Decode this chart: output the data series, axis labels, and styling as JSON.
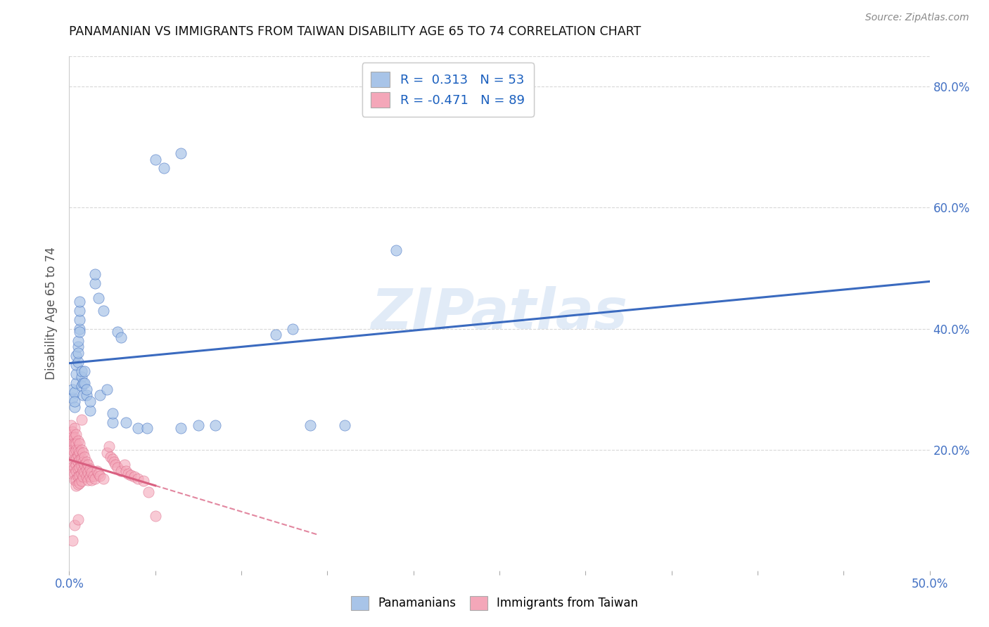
{
  "title": "PANAMANIAN VS IMMIGRANTS FROM TAIWAN DISABILITY AGE 65 TO 74 CORRELATION CHART",
  "source": "Source: ZipAtlas.com",
  "ylabel": "Disability Age 65 to 74",
  "y_ticks": [
    0.0,
    0.2,
    0.4,
    0.6,
    0.8
  ],
  "y_tick_labels": [
    "",
    "20.0%",
    "40.0%",
    "60.0%",
    "80.0%"
  ],
  "x_ticks": [
    0.0,
    0.05,
    0.1,
    0.15,
    0.2,
    0.25,
    0.3,
    0.35,
    0.4,
    0.45,
    0.5
  ],
  "xlim": [
    0.0,
    0.5
  ],
  "ylim": [
    0.0,
    0.85
  ],
  "legend1_label": "R =  0.313   N = 53",
  "legend2_label": "R = -0.471   N = 89",
  "blue_color": "#a8c4e8",
  "pink_color": "#f4a7b9",
  "blue_line_color": "#3a6abf",
  "pink_line_color": "#d95f80",
  "watermark": "ZIPatlas",
  "background_color": "#ffffff",
  "grid_color": "#d8d8d8",
  "blue_scatter": [
    [
      0.002,
      0.285
    ],
    [
      0.002,
      0.3
    ],
    [
      0.003,
      0.27
    ],
    [
      0.003,
      0.295
    ],
    [
      0.004,
      0.31
    ],
    [
      0.004,
      0.325
    ],
    [
      0.004,
      0.34
    ],
    [
      0.004,
      0.355
    ],
    [
      0.005,
      0.37
    ],
    [
      0.005,
      0.345
    ],
    [
      0.005,
      0.36
    ],
    [
      0.005,
      0.38
    ],
    [
      0.006,
      0.4
    ],
    [
      0.006,
      0.415
    ],
    [
      0.006,
      0.43
    ],
    [
      0.006,
      0.445
    ],
    [
      0.006,
      0.395
    ],
    [
      0.007,
      0.32
    ],
    [
      0.007,
      0.33
    ],
    [
      0.007,
      0.305
    ],
    [
      0.008,
      0.29
    ],
    [
      0.008,
      0.31
    ],
    [
      0.009,
      0.33
    ],
    [
      0.009,
      0.31
    ],
    [
      0.01,
      0.29
    ],
    [
      0.01,
      0.3
    ],
    [
      0.012,
      0.265
    ],
    [
      0.012,
      0.28
    ],
    [
      0.015,
      0.475
    ],
    [
      0.015,
      0.49
    ],
    [
      0.017,
      0.45
    ],
    [
      0.018,
      0.29
    ],
    [
      0.02,
      0.43
    ],
    [
      0.022,
      0.3
    ],
    [
      0.025,
      0.245
    ],
    [
      0.025,
      0.26
    ],
    [
      0.028,
      0.395
    ],
    [
      0.03,
      0.385
    ],
    [
      0.033,
      0.245
    ],
    [
      0.04,
      0.235
    ],
    [
      0.045,
      0.235
    ],
    [
      0.05,
      0.68
    ],
    [
      0.055,
      0.665
    ],
    [
      0.065,
      0.69
    ],
    [
      0.065,
      0.235
    ],
    [
      0.075,
      0.24
    ],
    [
      0.085,
      0.24
    ],
    [
      0.12,
      0.39
    ],
    [
      0.13,
      0.4
    ],
    [
      0.14,
      0.24
    ],
    [
      0.16,
      0.24
    ],
    [
      0.19,
      0.53
    ],
    [
      0.003,
      0.28
    ]
  ],
  "pink_scatter": [
    [
      0.001,
      0.24
    ],
    [
      0.001,
      0.225
    ],
    [
      0.001,
      0.215
    ],
    [
      0.002,
      0.23
    ],
    [
      0.002,
      0.22
    ],
    [
      0.002,
      0.21
    ],
    [
      0.002,
      0.2
    ],
    [
      0.002,
      0.195
    ],
    [
      0.002,
      0.18
    ],
    [
      0.002,
      0.17
    ],
    [
      0.002,
      0.16
    ],
    [
      0.003,
      0.235
    ],
    [
      0.003,
      0.22
    ],
    [
      0.003,
      0.21
    ],
    [
      0.003,
      0.195
    ],
    [
      0.003,
      0.185
    ],
    [
      0.003,
      0.17
    ],
    [
      0.003,
      0.16
    ],
    [
      0.003,
      0.15
    ],
    [
      0.004,
      0.225
    ],
    [
      0.004,
      0.21
    ],
    [
      0.004,
      0.2
    ],
    [
      0.004,
      0.185
    ],
    [
      0.004,
      0.175
    ],
    [
      0.004,
      0.165
    ],
    [
      0.004,
      0.15
    ],
    [
      0.004,
      0.14
    ],
    [
      0.005,
      0.215
    ],
    [
      0.005,
      0.2
    ],
    [
      0.005,
      0.19
    ],
    [
      0.005,
      0.18
    ],
    [
      0.005,
      0.168
    ],
    [
      0.005,
      0.155
    ],
    [
      0.005,
      0.143
    ],
    [
      0.006,
      0.21
    ],
    [
      0.006,
      0.196
    ],
    [
      0.006,
      0.183
    ],
    [
      0.006,
      0.17
    ],
    [
      0.006,
      0.157
    ],
    [
      0.006,
      0.145
    ],
    [
      0.007,
      0.2
    ],
    [
      0.007,
      0.186
    ],
    [
      0.007,
      0.173
    ],
    [
      0.007,
      0.16
    ],
    [
      0.007,
      0.148
    ],
    [
      0.007,
      0.25
    ],
    [
      0.008,
      0.195
    ],
    [
      0.008,
      0.18
    ],
    [
      0.008,
      0.166
    ],
    [
      0.008,
      0.155
    ],
    [
      0.009,
      0.188
    ],
    [
      0.009,
      0.175
    ],
    [
      0.009,
      0.162
    ],
    [
      0.01,
      0.18
    ],
    [
      0.01,
      0.168
    ],
    [
      0.01,
      0.155
    ],
    [
      0.011,
      0.175
    ],
    [
      0.011,
      0.162
    ],
    [
      0.011,
      0.15
    ],
    [
      0.012,
      0.168
    ],
    [
      0.012,
      0.155
    ],
    [
      0.013,
      0.162
    ],
    [
      0.013,
      0.15
    ],
    [
      0.014,
      0.157
    ],
    [
      0.015,
      0.152
    ],
    [
      0.016,
      0.165
    ],
    [
      0.017,
      0.16
    ],
    [
      0.018,
      0.157
    ],
    [
      0.02,
      0.152
    ],
    [
      0.022,
      0.195
    ],
    [
      0.023,
      0.205
    ],
    [
      0.024,
      0.188
    ],
    [
      0.025,
      0.185
    ],
    [
      0.026,
      0.18
    ],
    [
      0.027,
      0.175
    ],
    [
      0.028,
      0.17
    ],
    [
      0.03,
      0.165
    ],
    [
      0.032,
      0.175
    ],
    [
      0.033,
      0.165
    ],
    [
      0.034,
      0.16
    ],
    [
      0.036,
      0.158
    ],
    [
      0.038,
      0.155
    ],
    [
      0.04,
      0.152
    ],
    [
      0.043,
      0.148
    ],
    [
      0.046,
      0.13
    ],
    [
      0.05,
      0.09
    ],
    [
      0.002,
      0.05
    ],
    [
      0.003,
      0.075
    ],
    [
      0.005,
      0.085
    ]
  ]
}
